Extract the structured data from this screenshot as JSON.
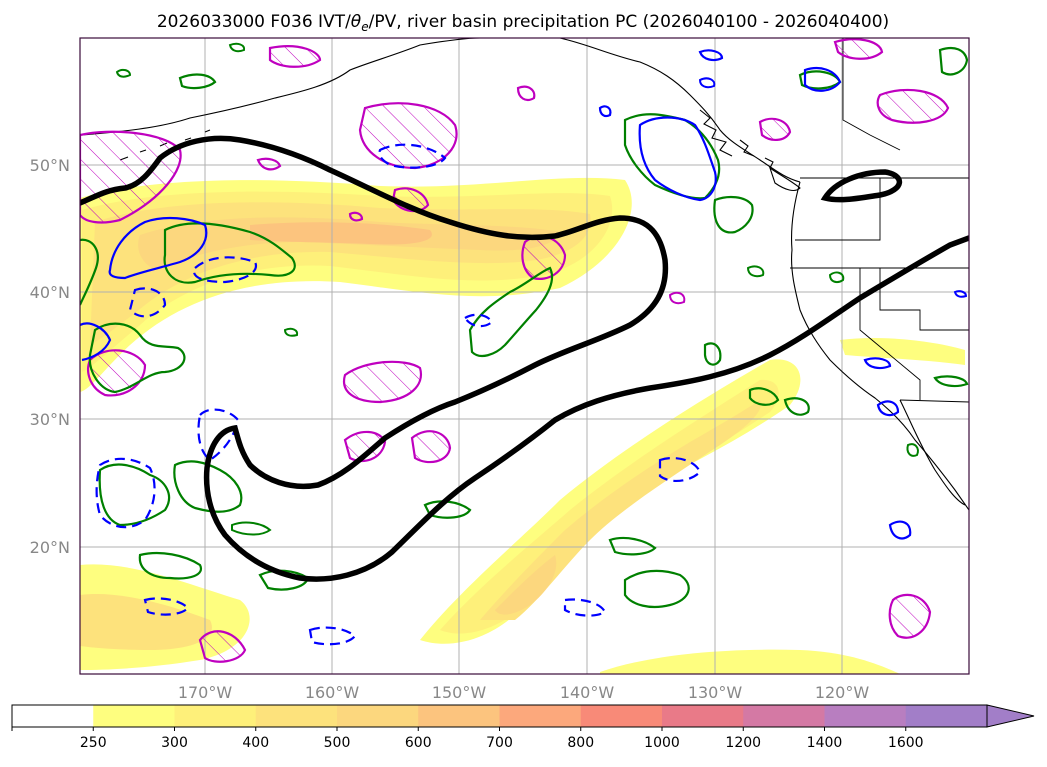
{
  "title": "2026033000 F036 IVT/θe/PV, river basin precipitation PC (2026040100 - 2026040400)",
  "title_parts": {
    "pre": "2026033000 F036 IVT/",
    "theta": "θ",
    "sub": "e",
    "post": "/PV, river basin precipitation PC (2026040100 - 2026040400)"
  },
  "map": {
    "lat_labels": [
      "50°N",
      "40°N",
      "30°N",
      "20°N"
    ],
    "lon_labels": [
      "170°W",
      "160°W",
      "150°W",
      "140°W",
      "130°W",
      "120°W"
    ],
    "lat_values": [
      50,
      40,
      30,
      20
    ],
    "lon_values": [
      -170,
      -160,
      -150,
      -140,
      -130,
      -120
    ],
    "extent": {
      "lon_min": -180,
      "lon_max": -110,
      "lat_min": 10,
      "lat_max": 60
    },
    "gridlines": true
  },
  "colorbar": {
    "ticks": [
      "250",
      "300",
      "400",
      "500",
      "600",
      "700",
      "800",
      "1000",
      "1200",
      "1400",
      "1600"
    ],
    "levels": [
      0,
      250,
      300,
      400,
      500,
      600,
      700,
      800,
      1000,
      1200,
      1400,
      1600
    ],
    "colors": [
      "#ffffff",
      "#fefe7f",
      "#fef07a",
      "#fde27c",
      "#fcd77e",
      "#fcc47e",
      "#fca87c",
      "#f88a78",
      "#e97a88",
      "#d479a4",
      "#b87ec0",
      "#a27ec8"
    ],
    "extend": "max"
  },
  "colors": {
    "pv": "#008000",
    "theta_e": "#0000ff",
    "pc": "#bf00bf",
    "jet": "#000000",
    "frame": "#3a0a3a",
    "grid": "#b0b0b0",
    "ivt_core": "#fcc47e",
    "ivt_mid": "#fcd77e",
    "ivt_low": "#fef07a",
    "ivt_edge": "#fefe7f"
  }
}
